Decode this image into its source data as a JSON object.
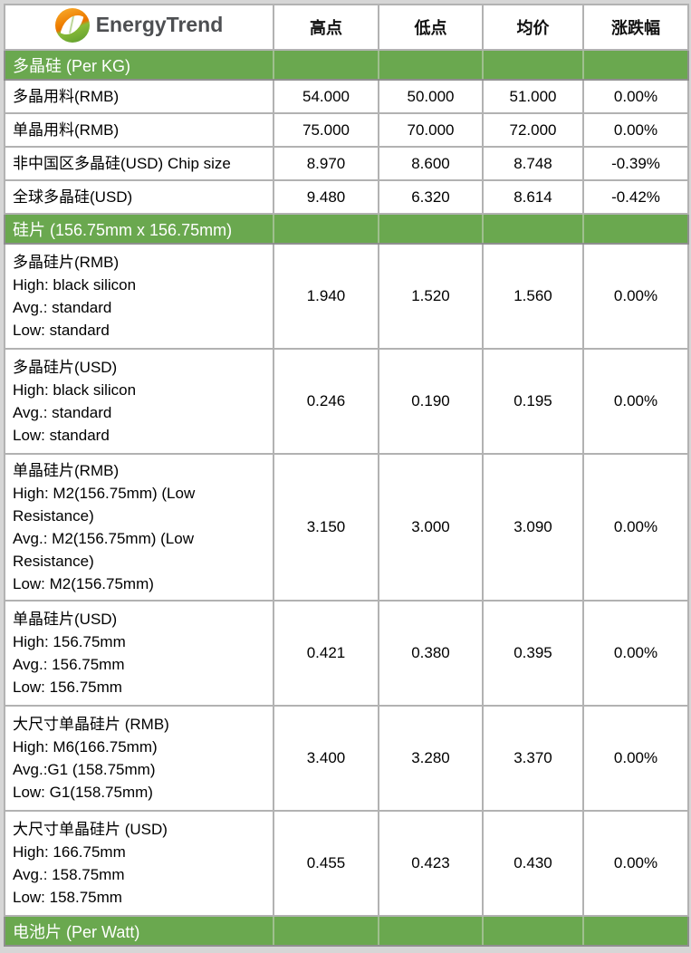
{
  "brand": {
    "name": "EnergyTrend",
    "logo_icon": "energytrend-leaf-logo",
    "logo_orange": "#ee7d00",
    "logo_green": "#6aa84f"
  },
  "colors": {
    "section_green": "#6aa84f",
    "grid_gray": "#b2b2b2",
    "page_background": "#d6d6d6",
    "section_text": "#ffffff"
  },
  "table": {
    "columns": {
      "high": "高点",
      "low": "低点",
      "avg": "均价",
      "change": "涨跌幅"
    },
    "sections": [
      {
        "header": "多晶硅 (Per KG)",
        "rows": [
          {
            "label": "多晶用料(RMB)",
            "high": "54.000",
            "low": "50.000",
            "avg": "51.000",
            "change": "0.00%"
          },
          {
            "label": "单晶用料(RMB)",
            "high": "75.000",
            "low": "70.000",
            "avg": "72.000",
            "change": "0.00%"
          },
          {
            "label": "非中国区多晶硅(USD) Chip size",
            "high": "8.970",
            "low": "8.600",
            "avg": "8.748",
            "change": "-0.39%"
          },
          {
            "label": "全球多晶硅(USD)",
            "high": "9.480",
            "low": "6.320",
            "avg": "8.614",
            "change": "-0.42%"
          }
        ]
      },
      {
        "header": "硅片 (156.75mm x 156.75mm)",
        "rows": [
          {
            "label": "多晶硅片(RMB)\nHigh: black silicon\nAvg.: standard\nLow: standard",
            "high": "1.940",
            "low": "1.520",
            "avg": "1.560",
            "change": "0.00%"
          },
          {
            "label": "多晶硅片(USD)\nHigh: black silicon\nAvg.: standard\nLow: standard",
            "high": "0.246",
            "low": "0.190",
            "avg": "0.195",
            "change": "0.00%"
          },
          {
            "label": "单晶硅片(RMB)\nHigh: M2(156.75mm) (Low Resistance)\nAvg.: M2(156.75mm) (Low Resistance)\nLow: M2(156.75mm)",
            "high": "3.150",
            "low": "3.000",
            "avg": "3.090",
            "change": "0.00%"
          },
          {
            "label": "单晶硅片(USD)\nHigh: 156.75mm\nAvg.: 156.75mm\nLow: 156.75mm",
            "high": "0.421",
            "low": "0.380",
            "avg": "0.395",
            "change": "0.00%"
          },
          {
            "label": "大尺寸单晶硅片 (RMB)\nHigh: M6(166.75mm)\nAvg.:G1 (158.75mm)\nLow: G1(158.75mm)",
            "high": "3.400",
            "low": "3.280",
            "avg": "3.370",
            "change": "0.00%"
          },
          {
            "label": "大尺寸单晶硅片 (USD)\nHigh: 166.75mm\nAvg.: 158.75mm\nLow: 158.75mm",
            "high": "0.455",
            "low": "0.423",
            "avg": "0.430",
            "change": "0.00%"
          }
        ]
      },
      {
        "header": "电池片 (Per Watt)",
        "rows": []
      }
    ]
  }
}
